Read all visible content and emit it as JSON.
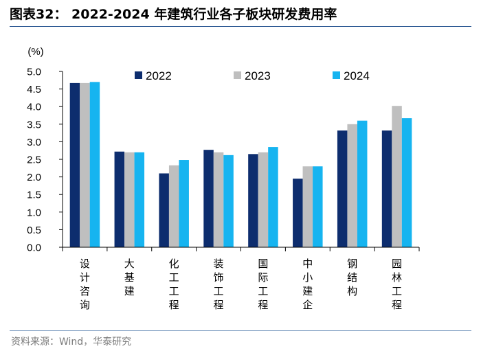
{
  "header": {
    "title": "图表32：  2022-2024 年建筑行业各子板块研发费用率"
  },
  "footer": {
    "source": "资料来源：Wind，华泰研究"
  },
  "chart_data": {
    "type": "bar",
    "title": "2022-2024 年建筑行业各子板块研发费用率",
    "ylabel": "(%)",
    "xlabel": "",
    "ylim": [
      0,
      5.0
    ],
    "yticks": [
      "0.0",
      "0.5",
      "1.0",
      "1.5",
      "2.0",
      "2.5",
      "3.0",
      "3.5",
      "4.0",
      "4.5",
      "5.0"
    ],
    "categories": [
      "设计咨询",
      "大基建",
      "化工工程",
      "装饰工程",
      "国际工程",
      "中小建企",
      "钢结构",
      "园林工程"
    ],
    "series": [
      {
        "name": "2022",
        "color": "#0d2d6e",
        "values": [
          4.67,
          2.72,
          2.1,
          2.77,
          2.65,
          1.95,
          3.32,
          3.32
        ]
      },
      {
        "name": "2023",
        "color": "#bfbfbf",
        "values": [
          4.67,
          2.7,
          2.33,
          2.7,
          2.7,
          2.3,
          3.5,
          4.02
        ]
      },
      {
        "name": "2024",
        "color": "#16b4f0",
        "values": [
          4.7,
          2.7,
          2.48,
          2.62,
          2.85,
          2.3,
          3.6,
          3.67
        ]
      }
    ],
    "legend_position": "top"
  }
}
